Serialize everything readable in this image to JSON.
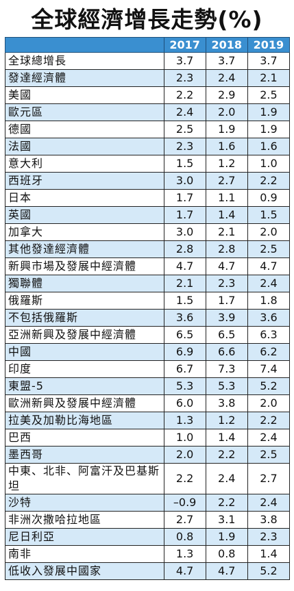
{
  "title": "全球經濟增長走勢(%)",
  "table": {
    "header": [
      "",
      "2017",
      "2018",
      "2019"
    ],
    "rows": [
      [
        "全球總增長",
        "3.7",
        "3.7",
        "3.7"
      ],
      [
        "發達經濟體",
        "2.3",
        "2.4",
        "2.1"
      ],
      [
        "美國",
        "2.2",
        "2.9",
        "2.5"
      ],
      [
        "歐元區",
        "2.4",
        "2.0",
        "1.9"
      ],
      [
        "德國",
        "2.5",
        "1.9",
        "1.9"
      ],
      [
        "法國",
        "2.3",
        "1.6",
        "1.6"
      ],
      [
        "意大利",
        "1.5",
        "1.2",
        "1.0"
      ],
      [
        "西班牙",
        "3.0",
        "2.7",
        "2.2"
      ],
      [
        "日本",
        "1.7",
        "1.1",
        "0.9"
      ],
      [
        "英國",
        "1.7",
        "1.4",
        "1.5"
      ],
      [
        "加拿大",
        "3.0",
        "2.1",
        "2.0"
      ],
      [
        "其他發達經濟體",
        "2.8",
        "2.8",
        "2.5"
      ],
      [
        "新興市場及發展中經濟體",
        "4.7",
        "4.7",
        "4.7"
      ],
      [
        "獨聯體",
        "2.1",
        "2.3",
        "2.4"
      ],
      [
        "俄羅斯",
        "1.5",
        "1.7",
        "1.8"
      ],
      [
        "不包括俄羅斯",
        "3.6",
        "3.9",
        "3.6"
      ],
      [
        "亞洲新興及發展中經濟體",
        "6.5",
        "6.5",
        "6.3"
      ],
      [
        "中國",
        "6.9",
        "6.6",
        "6.2"
      ],
      [
        "印度",
        "6.7",
        "7.3",
        "7.4"
      ],
      [
        "東盟-5",
        "5.3",
        "5.3",
        "5.2"
      ],
      [
        "歐洲新興及發展中經濟體",
        "6.0",
        "3.8",
        "2.0"
      ],
      [
        "拉美及加勒比海地區",
        "1.3",
        "1.2",
        "2.2"
      ],
      [
        "巴西",
        "1.0",
        "1.4",
        "2.4"
      ],
      [
        "墨西哥",
        "2.0",
        "2.2",
        "2.5"
      ],
      [
        "中東、北非、阿富汗及巴基斯坦",
        "2.2",
        "2.4",
        "2.7"
      ],
      [
        "沙特",
        "–0.9",
        "2.2",
        "2.4"
      ],
      [
        "非洲次撒哈拉地區",
        "2.7",
        "3.1",
        "3.8"
      ],
      [
        "尼日利亞",
        "0.8",
        "1.9",
        "2.3"
      ],
      [
        "南非",
        "1.3",
        "0.8",
        "1.4"
      ],
      [
        "低收入發展中國家",
        "4.7",
        "4.7",
        "5.2"
      ]
    ]
  }
}
